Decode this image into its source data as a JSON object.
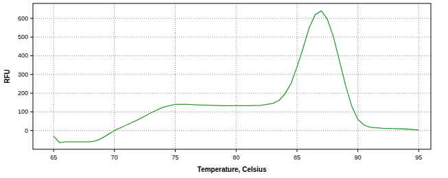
{
  "chart_data": {
    "type": "line",
    "x_label": "Temperature, Celsius",
    "y_label": "RFU",
    "x": [
      65,
      65.5,
      66,
      67,
      68,
      68.5,
      69,
      69.5,
      70,
      71,
      72,
      73,
      74,
      75,
      76,
      77,
      78,
      79,
      80,
      81,
      82,
      83,
      83.5,
      84,
      84.5,
      85,
      85.5,
      86,
      86.5,
      87,
      87.5,
      88,
      88.5,
      89,
      89.5,
      90,
      90.5,
      91,
      92,
      93,
      94,
      95
    ],
    "series": [
      {
        "color": "#2e9a2e",
        "values": [
          -30,
          -65,
          -60,
          -60,
          -60,
          -55,
          -40,
          -20,
          0,
          30,
          60,
          95,
          125,
          140,
          140,
          137,
          135,
          133,
          133,
          133,
          135,
          145,
          160,
          195,
          250,
          340,
          440,
          550,
          620,
          640,
          595,
          500,
          370,
          240,
          130,
          60,
          30,
          18,
          12,
          10,
          8,
          3
        ]
      }
    ],
    "xlim": [
      63.3,
      96
    ],
    "ylim": [
      -100,
      680
    ],
    "xticks": [
      65,
      70,
      75,
      80,
      85,
      90,
      95
    ],
    "yticks": [
      0,
      100,
      200,
      300,
      400,
      500,
      600
    ],
    "grid": true
  }
}
